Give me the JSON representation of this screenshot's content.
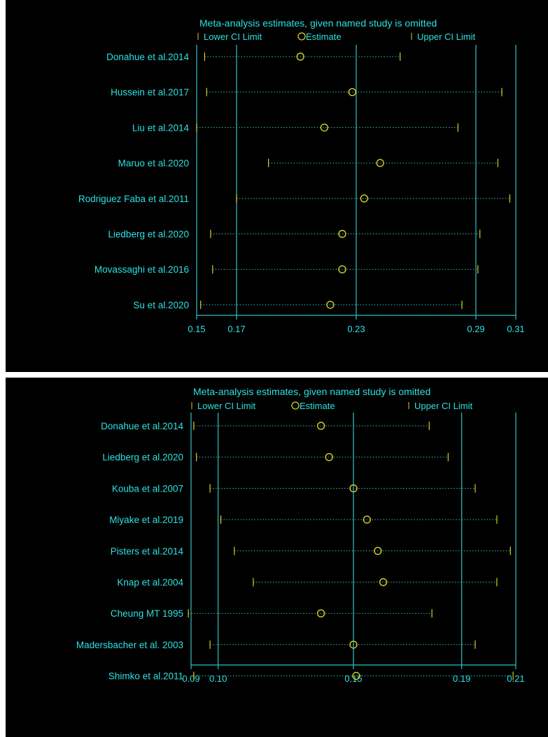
{
  "colors": {
    "background": "#000000",
    "axis": "#2ec4c4",
    "text": "#2ee0e0",
    "marker": "#d8d020"
  },
  "legend": {
    "lower": "Lower CI Limit",
    "estimate": "Estimate",
    "upper": "Upper CI Limit"
  },
  "chart_data": [
    {
      "type": "forest",
      "title": "Meta-analysis estimates, given named study is omitted",
      "ticks": [
        "0.15",
        "0.17",
        "0.23",
        "0.29",
        "0.31"
      ],
      "xlim": [
        0.15,
        0.31
      ],
      "reference_lines": [
        0.17,
        0.23,
        0.29
      ],
      "grid": false,
      "legend_position": "top",
      "studies": [
        {
          "label": "Donahue et al.2014",
          "lower": 0.154,
          "estimate": 0.202,
          "upper": 0.252
        },
        {
          "label": "Hussein et al.2017",
          "lower": 0.155,
          "estimate": 0.228,
          "upper": 0.303
        },
        {
          "label": "Liu et al.2014",
          "lower": 0.15,
          "estimate": 0.214,
          "upper": 0.281
        },
        {
          "label": "Maruo et al.2020",
          "lower": 0.186,
          "estimate": 0.242,
          "upper": 0.301
        },
        {
          "label": "Rodriguez Faba et al.2011",
          "lower": 0.17,
          "estimate": 0.234,
          "upper": 0.307
        },
        {
          "label": "Liedberg  et al.2020",
          "lower": 0.157,
          "estimate": 0.223,
          "upper": 0.292
        },
        {
          "label": "Movassaghi et al.2016",
          "lower": 0.158,
          "estimate": 0.223,
          "upper": 0.291
        },
        {
          "label": "Su et al.2020",
          "lower": 0.152,
          "estimate": 0.217,
          "upper": 0.283
        }
      ]
    },
    {
      "type": "forest",
      "title": "Meta-analysis estimates, given named study is omitted",
      "ticks": [
        "0.09",
        "0.10",
        "0.15",
        "0.19",
        "0.21"
      ],
      "xlim": [
        0.09,
        0.21
      ],
      "reference_lines": [
        0.1,
        0.15,
        0.19
      ],
      "grid": false,
      "legend_position": "top",
      "studies": [
        {
          "label": "Donahue et al.2014",
          "lower": 0.091,
          "estimate": 0.138,
          "upper": 0.178
        },
        {
          "label": "Liedberg et al.2020",
          "lower": 0.092,
          "estimate": 0.141,
          "upper": 0.185
        },
        {
          "label": "Kouba et al.2007",
          "lower": 0.097,
          "estimate": 0.15,
          "upper": 0.195
        },
        {
          "label": "Miyake et al.2019",
          "lower": 0.101,
          "estimate": 0.155,
          "upper": 0.203
        },
        {
          "label": "Pisters et al.2014",
          "lower": 0.106,
          "estimate": 0.159,
          "upper": 0.208
        },
        {
          "label": "Knap et al.2004",
          "lower": 0.113,
          "estimate": 0.161,
          "upper": 0.203
        },
        {
          "label": "Cheung MT 1995",
          "lower": 0.089,
          "estimate": 0.138,
          "upper": 0.179
        },
        {
          "label": "Madersbacher et al. 2003",
          "lower": 0.097,
          "estimate": 0.15,
          "upper": 0.195
        },
        {
          "label": "Shimko et al.2011",
          "lower": 0.091,
          "estimate": 0.151,
          "upper": 0.209
        }
      ]
    }
  ]
}
